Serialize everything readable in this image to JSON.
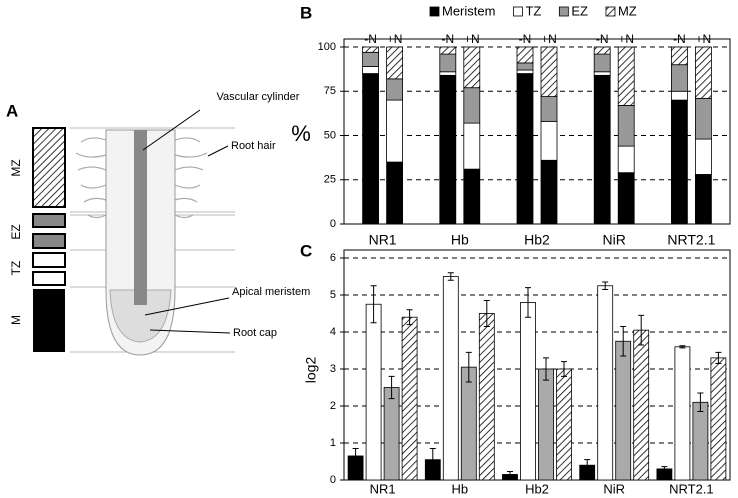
{
  "diagram": {
    "panel_label": "A",
    "zones": [
      "MZ",
      "EZ",
      "TZ",
      "M"
    ],
    "annotations": [
      "Vascular cylinder",
      "Root hair",
      "Apical meristem",
      "Root cap"
    ]
  },
  "chart_data": [
    {
      "type": "stacked-bar",
      "panel_label": "B",
      "y_label": "%",
      "categories": [
        "-N",
        "+N",
        "-N",
        "+N",
        "-N",
        "+N",
        "-N",
        "+N",
        "-N",
        "+N"
      ],
      "groups": [
        "NR1",
        "Hb",
        "Hb2",
        "NiR",
        "NRT2.1"
      ],
      "series": [
        {
          "name": "Meristem",
          "color": "#000000",
          "values": [
            85,
            35,
            84,
            31,
            85,
            36,
            84,
            29,
            70,
            28
          ]
        },
        {
          "name": "TZ",
          "color": "#ffffff",
          "values": [
            4,
            35,
            2,
            26,
            2,
            22,
            2,
            15,
            5,
            20
          ]
        },
        {
          "name": "EZ",
          "color": "#999999",
          "values": [
            8,
            12,
            10,
            20,
            4,
            14,
            10,
            23,
            15,
            23
          ]
        },
        {
          "name": "MZ",
          "color": "#ffffff",
          "pattern": "diagonal-hatch",
          "values": [
            3,
            18,
            4,
            23,
            9,
            28,
            4,
            33,
            10,
            29
          ]
        }
      ],
      "ylim": [
        0,
        100
      ],
      "yticks": [
        0,
        25,
        50,
        75,
        100
      ],
      "grid": true
    },
    {
      "type": "bar",
      "panel_label": "C",
      "y_label": "log2",
      "categories": [
        "NR1",
        "Hb",
        "Hb2",
        "NiR",
        "NRT2.1"
      ],
      "series": [
        {
          "color": "#000000",
          "values": [
            0.65,
            0.55,
            0.15,
            0.4,
            0.3
          ],
          "errors": [
            0.2,
            0.3,
            0.08,
            0.15,
            0.06
          ]
        },
        {
          "color": "#ffffff",
          "values": [
            4.75,
            5.5,
            4.8,
            5.25,
            3.6
          ],
          "errors": [
            0.5,
            0.1,
            0.4,
            0.1,
            0.03
          ]
        },
        {
          "color": "#aaaaaa",
          "values": [
            2.5,
            3.05,
            3.0,
            3.75,
            2.1
          ],
          "errors": [
            0.3,
            0.4,
            0.3,
            0.4,
            0.25
          ]
        },
        {
          "color": "#ffffff",
          "pattern": "diagonal-hatch",
          "values": [
            4.4,
            4.5,
            3.0,
            4.05,
            3.3
          ],
          "errors": [
            0.2,
            0.35,
            0.2,
            0.4,
            0.15
          ]
        }
      ],
      "ylim": [
        0,
        6
      ],
      "yticks": [
        0,
        1,
        2,
        3,
        4,
        5,
        6
      ],
      "grid": true
    }
  ]
}
